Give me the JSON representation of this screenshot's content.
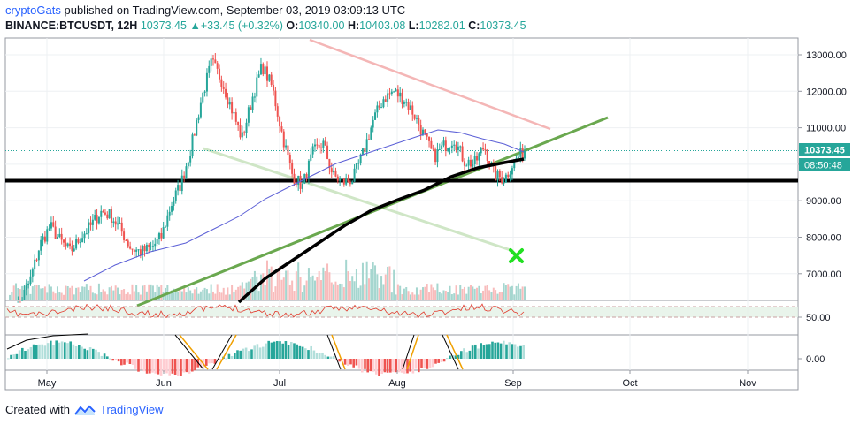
{
  "header": {
    "author": "cryptoGats",
    "published_text": "published on TradingView.com, September 03, 2019 03:09:13 UTC",
    "symbol": "BINANCE:BTCUSDT, 12H",
    "last": "10373.45",
    "change": "+33.45 (+0.32%)",
    "o_label": "O:",
    "o_value": "10340.00",
    "h_label": "H:",
    "h_value": "10403.08",
    "l_label": "L:",
    "l_value": "10282.01",
    "c_label": "C:",
    "c_value": "10373.45"
  },
  "footer": {
    "created_with": "Created with",
    "brand": "TradingView"
  },
  "colors": {
    "up": "#26a69a",
    "down": "#ef5350",
    "support_line": "#000000",
    "trend_green": "#6aa84f",
    "trend_red": "#f4b6b6",
    "ma_blue": "#5b5fd6",
    "ma_black": "#000000",
    "rsi": "#e23b2e",
    "vol_up": "#a5d6cf",
    "vol_down": "#f8bcbc",
    "marker": "#22e022",
    "price_tag": "#26a69a"
  },
  "chart_data": {
    "type": "candlestick",
    "interval": "12H",
    "x_ticks": [
      "May",
      "Jun",
      "Jul",
      "Aug",
      "Sep",
      "Oct",
      "Nov"
    ],
    "y_ticks": [
      "13000.00",
      "12000.00",
      "11000.00",
      "10000.00",
      "9000.00",
      "8000.00",
      "7000.00"
    ],
    "ylim": [
      6300,
      13500
    ],
    "price_label": "10373.45",
    "time_label": "08:50:48",
    "support_level": 9500,
    "rsi_tick": "50.00",
    "macd_tick": "0.00",
    "close_path": [
      5900,
      6200,
      6800,
      7800,
      8300,
      7900,
      7600,
      8000,
      8300,
      8700,
      8600,
      8200,
      7700,
      7600,
      7700,
      8000,
      8900,
      9500,
      10500,
      11800,
      12800,
      12300,
      11500,
      10700,
      11800,
      12700,
      12100,
      10800,
      9700,
      9400,
      10300,
      10600,
      9700,
      9500,
      9600,
      10300,
      11200,
      11800,
      12000,
      11800,
      11400,
      10800,
      10200,
      10500,
      10700,
      10100,
      10000,
      10500,
      9700,
      9600,
      10100,
      10373
    ]
  }
}
